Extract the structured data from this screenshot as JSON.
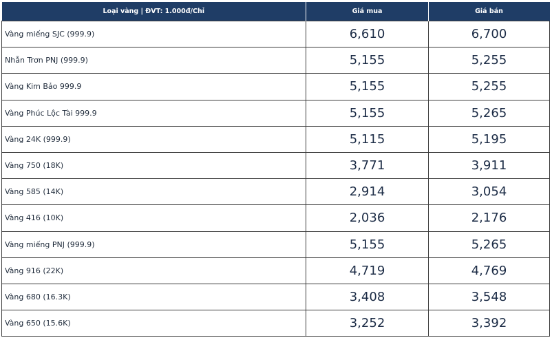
{
  "table": {
    "headers": {
      "type": "Loại vàng | ĐVT: 1.000đ/Chỉ",
      "buy": "Giá mua",
      "sell": "Giá bán"
    },
    "rows": [
      {
        "name": "Vàng miếng SJC (999.9)",
        "buy": "6,610",
        "sell": "6,700"
      },
      {
        "name": "Nhẫn Trơn PNJ (999.9)",
        "buy": "5,155",
        "sell": "5,255"
      },
      {
        "name": "Vàng Kim Bảo 999.9",
        "buy": "5,155",
        "sell": "5,255"
      },
      {
        "name": "Vàng Phúc Lộc Tài 999.9",
        "buy": "5,155",
        "sell": "5,265"
      },
      {
        "name": "Vàng 24K (999.9)",
        "buy": "5,115",
        "sell": "5,195"
      },
      {
        "name": "Vàng 750 (18K)",
        "buy": "3,771",
        "sell": "3,911"
      },
      {
        "name": "Vàng 585 (14K)",
        "buy": "2,914",
        "sell": "3,054"
      },
      {
        "name": "Vàng 416 (10K)",
        "buy": "2,036",
        "sell": "2,176"
      },
      {
        "name": "Vàng miếng PNJ (999.9)",
        "buy": "5,155",
        "sell": "5,265"
      },
      {
        "name": "Vàng 916 (22K)",
        "buy": "4,719",
        "sell": "4,769"
      },
      {
        "name": "Vàng 680 (16.3K)",
        "buy": "3,408",
        "sell": "3,548"
      },
      {
        "name": "Vàng 650 (15.6K)",
        "buy": "3,252",
        "sell": "3,392"
      }
    ]
  }
}
